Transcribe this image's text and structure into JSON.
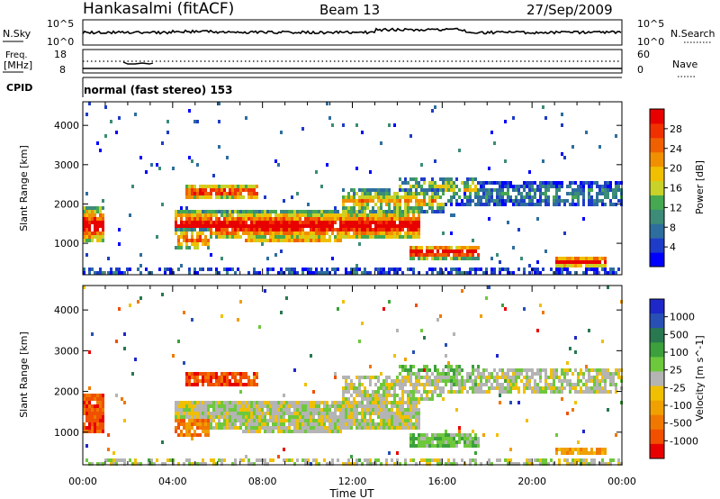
{
  "header": {
    "station": "Hankasalmi (fitACF)",
    "beam": "Beam 13",
    "date": "27/Sep/2009"
  },
  "strips": {
    "nsky": {
      "label": "N.Sky",
      "tick_top": "10^5",
      "tick_bottom": "10^0",
      "right_label": "N.Search",
      "right_tick_top": "10^5",
      "right_tick_bottom": "10^0"
    },
    "freq": {
      "label_line1": "Freq.",
      "label_line2": "[MHz]",
      "tick_top": "18",
      "tick_bottom": "8",
      "right_label": "Nave",
      "right_tick_top": "60",
      "right_tick_bottom": "0"
    },
    "cpid": {
      "label": "CPID",
      "value": "normal (fast stereo) 153"
    }
  },
  "chart_data": [
    {
      "type": "heatmap",
      "name": "power",
      "xlabel": "Time UT",
      "ylabel": "Slant Range [km]",
      "x_ticks": [
        "00:00",
        "04:00",
        "08:00",
        "12:00",
        "16:00",
        "20:00",
        "00:00"
      ],
      "xlim_hours": [
        0,
        24
      ],
      "ylim": [
        200,
        4600
      ],
      "y_ticks": [
        1000,
        2000,
        3000,
        4000
      ],
      "colorbar": {
        "label": "Power [dB]",
        "ticks": [
          "4",
          "8",
          "12",
          "16",
          "20",
          "24",
          "28"
        ],
        "colors": [
          "#0000ff",
          "#1e3cc8",
          "#2e6e9e",
          "#3c8c78",
          "#46a850",
          "#c8d228",
          "#f0c000",
          "#f09000",
          "#f06000",
          "#f03000",
          "#e80000"
        ]
      }
    },
    {
      "type": "heatmap",
      "name": "velocity",
      "xlabel": "Time UT",
      "ylabel": "Slant Range [km]",
      "x_ticks": [
        "00:00",
        "04:00",
        "08:00",
        "12:00",
        "16:00",
        "20:00",
        "00:00"
      ],
      "xlim_hours": [
        0,
        24
      ],
      "ylim": [
        200,
        4600
      ],
      "y_ticks": [
        1000,
        2000,
        3000,
        4000
      ],
      "colorbar": {
        "label": "Velocity [m s^-1]",
        "ticks": [
          "1000",
          "500",
          "100",
          "25",
          "-25",
          "-100",
          "-500",
          "-1000"
        ],
        "colors": [
          "#1e28c8",
          "#2850b4",
          "#287850",
          "#3ca03c",
          "#6ec83c",
          "#b4b4b4",
          "#f0c000",
          "#f0a000",
          "#f07800",
          "#f05000",
          "#e80000"
        ]
      }
    }
  ],
  "colors": {
    "ground_scatter": "#b4b4b4"
  }
}
